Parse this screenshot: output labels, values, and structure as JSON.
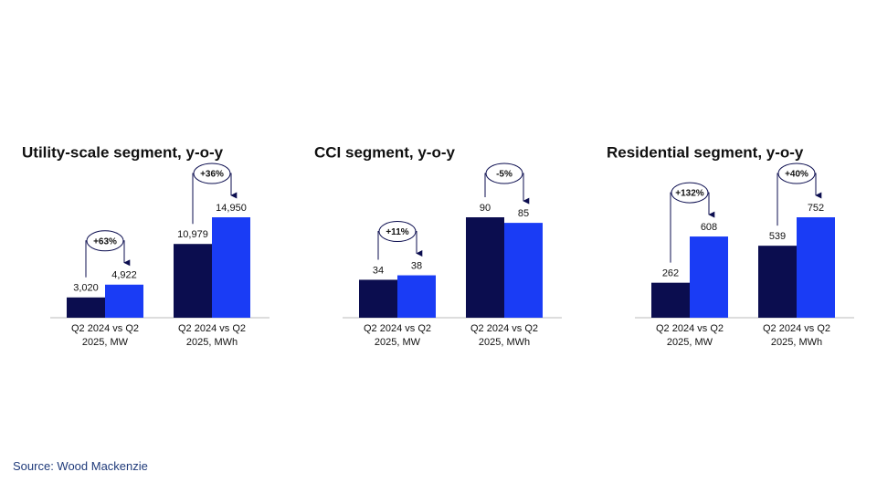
{
  "source": "Source: Wood Mackenzie",
  "chart_data": [
    {
      "type": "bar",
      "title": "Utility-scale segment, y-o-y",
      "categories": [
        "Q2 2024 vs Q2 2025, MW",
        "Q2 2024 vs Q2 2025, MWh"
      ],
      "series": [
        {
          "color": "#0b0d4f",
          "values": [
            3020,
            10979
          ],
          "value_labels": [
            "3,020",
            "10,979"
          ]
        },
        {
          "color": "#1a3cf5",
          "values": [
            4922,
            14950
          ],
          "value_labels": [
            "4,922",
            "14,950"
          ]
        }
      ],
      "annotations": [
        "+63%",
        "+36%"
      ]
    },
    {
      "type": "bar",
      "title": "CCI segment, y-o-y",
      "categories": [
        "Q2 2024 vs Q2 2025, MW",
        "Q2 2024 vs Q2 2025, MWh"
      ],
      "series": [
        {
          "color": "#0b0d4f",
          "values": [
            34,
            90
          ]
        },
        {
          "color": "#1a3cf5",
          "values": [
            38,
            85
          ]
        }
      ],
      "annotations": [
        "+11%",
        "-5%"
      ]
    },
    {
      "type": "bar",
      "title": "Residential segment, y-o-y",
      "categories": [
        "Q2 2024 vs Q2 2025, MW",
        "Q2 2024 vs Q2 2025, MWh"
      ],
      "series": [
        {
          "color": "#0b0d4f",
          "values": [
            262,
            539
          ]
        },
        {
          "color": "#1a3cf5",
          "values": [
            608,
            752
          ]
        }
      ],
      "annotations": [
        "+132%",
        "+40%"
      ]
    }
  ]
}
